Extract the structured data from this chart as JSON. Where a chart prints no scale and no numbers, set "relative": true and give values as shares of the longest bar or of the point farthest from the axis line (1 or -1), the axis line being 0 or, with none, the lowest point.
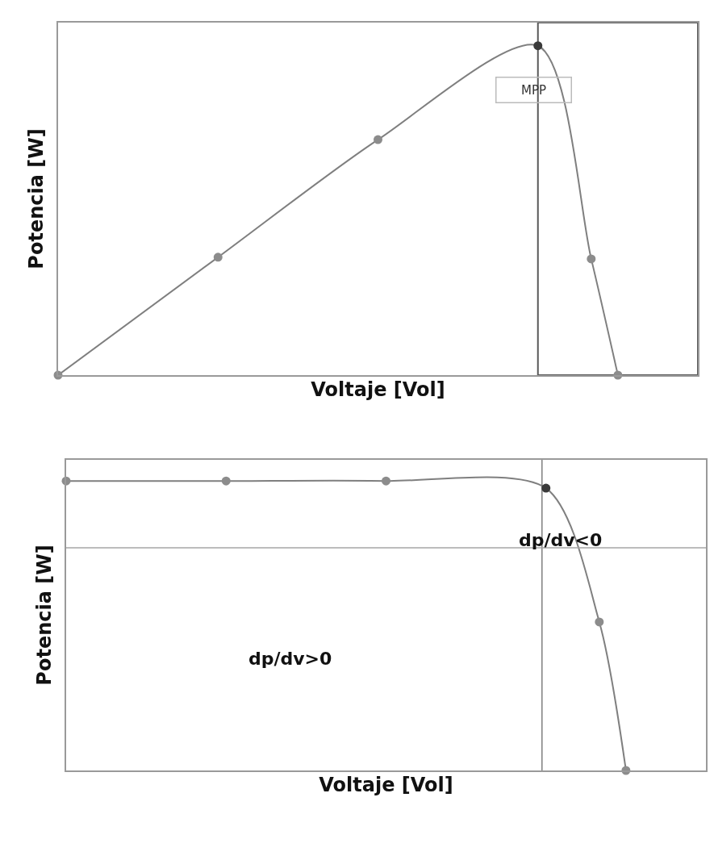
{
  "chart_data": [
    {
      "type": "line",
      "relative": true,
      "xlabel": "Voltaje [Vol]",
      "ylabel": "Potencia [W]",
      "tick_labels": false,
      "marker": "circle",
      "line_style": "solid",
      "categories": [
        null,
        null,
        null,
        null,
        null,
        null,
        null,
        null,
        null,
        null,
        null,
        null,
        null,
        null,
        null,
        null,
        null,
        null,
        null,
        null,
        null,
        null,
        null,
        null,
        null
      ],
      "series": [
        {
          "color": "#7f7f7f",
          "values": [
            0,
            null,
            null,
            null,
            null,
            null,
            0.358,
            null,
            null,
            null,
            null,
            null,
            0.715,
            null,
            null,
            null,
            null,
            null,
            1,
            null,
            0.353,
            0,
            null,
            null,
            null
          ],
          "colors": [
            "#8c8c8c",
            null,
            null,
            null,
            null,
            null,
            "#8c8c8c",
            null,
            null,
            null,
            null,
            null,
            "#8c8c8c",
            null,
            null,
            null,
            null,
            null,
            "#3a3a3a",
            null,
            "#8c8c8c",
            "#8c8c8c",
            null,
            null,
            null
          ]
        }
      ],
      "annotations": [
        "MPP"
      ]
    },
    {
      "type": "line",
      "relative": true,
      "xlabel": "Voltaje [Vol]",
      "ylabel": "Potencia [W]",
      "tick_labels": false,
      "marker": "circle",
      "line_style": "solid",
      "categories": [
        null,
        null,
        null,
        null,
        null,
        null,
        null,
        null,
        null,
        null,
        null,
        null,
        null,
        null,
        null,
        null,
        null,
        null,
        null,
        null,
        null,
        null,
        null,
        null,
        null
      ],
      "series": [
        {
          "color": "#7f7f7f",
          "values": [
            1,
            null,
            null,
            null,
            null,
            null,
            1,
            null,
            null,
            null,
            null,
            null,
            1,
            null,
            null,
            null,
            null,
            null,
            0.975,
            null,
            0.513,
            0,
            null,
            null,
            null
          ],
          "colors": [
            "#8c8c8c",
            null,
            null,
            null,
            null,
            null,
            "#8c8c8c",
            null,
            null,
            null,
            null,
            null,
            "#8c8c8c",
            null,
            null,
            null,
            null,
            null,
            "#3a3a3a",
            null,
            "#8c8c8c",
            "#8c8c8c",
            null,
            null,
            null
          ]
        }
      ],
      "ref_lines": [
        {
          "axis": "y",
          "value": 0.769,
          "color": "#a6a6a6"
        }
      ],
      "annotations": [
        "dp/dv<0",
        "dp/dv>0"
      ]
    }
  ]
}
